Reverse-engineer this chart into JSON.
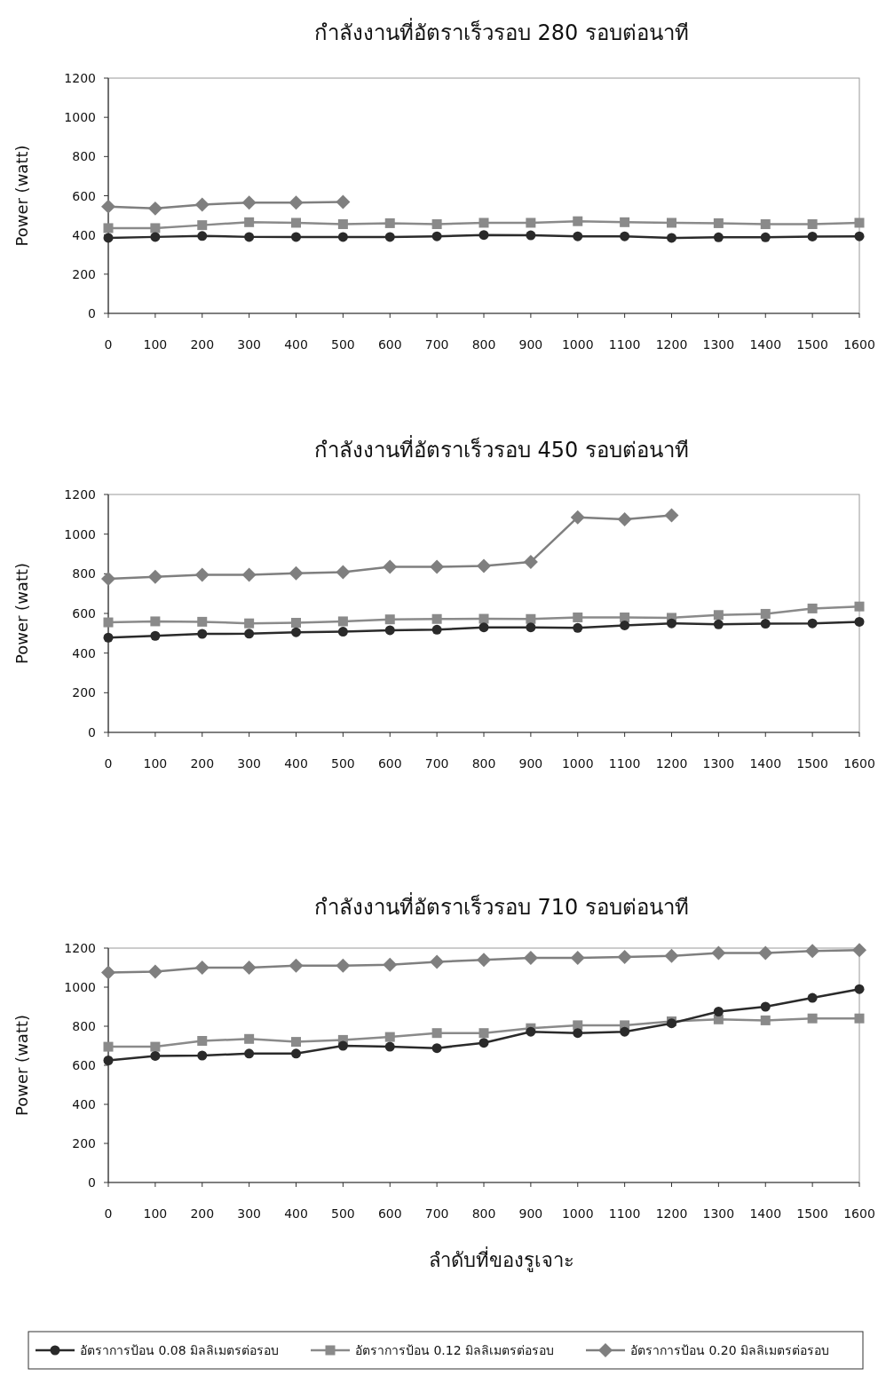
{
  "chart_data": [
    {
      "type": "line",
      "title": "กำลังงานที่อัตราเร็วรอบ 280 รอบต่อนาที",
      "ylabel": "Power (watt)",
      "x": [
        0,
        100,
        200,
        300,
        400,
        500,
        600,
        700,
        800,
        900,
        1000,
        1100,
        1200,
        1300,
        1400,
        1500,
        1600
      ],
      "xlim": [
        0,
        1600
      ],
      "xticks": [
        0,
        100,
        200,
        300,
        400,
        500,
        600,
        700,
        800,
        900,
        1000,
        1100,
        1200,
        1300,
        1400,
        1500,
        1600
      ],
      "ylim": [
        0,
        1200
      ],
      "yticks": [
        0,
        200,
        400,
        600,
        800,
        1000,
        1200
      ],
      "series": [
        {
          "color": "#2a2a2a",
          "marker": "circle",
          "values": [
            385,
            390,
            395,
            390,
            390,
            390,
            390,
            393,
            400,
            398,
            393,
            393,
            385,
            388,
            388,
            392,
            393
          ]
        },
        {
          "color": "#8a8a8a",
          "marker": "square",
          "values": [
            435,
            435,
            450,
            465,
            462,
            455,
            460,
            455,
            462,
            462,
            470,
            465,
            462,
            460,
            455,
            455,
            462
          ]
        },
        {
          "color": "#7f7f7f",
          "marker": "diamond",
          "values": [
            545,
            535,
            555,
            565,
            565,
            568,
            null,
            null,
            null,
            null,
            null,
            null,
            null,
            null,
            null,
            null,
            null
          ]
        }
      ]
    },
    {
      "type": "line",
      "title": "กำลังงานที่อัตราเร็วรอบ 450 รอบต่อนาที",
      "ylabel": "Power (watt)",
      "x": [
        0,
        100,
        200,
        300,
        400,
        500,
        600,
        700,
        800,
        900,
        1000,
        1100,
        1200,
        1300,
        1400,
        1500,
        1600
      ],
      "xlim": [
        0,
        1600
      ],
      "xticks": [
        0,
        100,
        200,
        300,
        400,
        500,
        600,
        700,
        800,
        900,
        1000,
        1100,
        1200,
        1300,
        1400,
        1500,
        1600
      ],
      "ylim": [
        0,
        1200
      ],
      "yticks": [
        0,
        200,
        400,
        600,
        800,
        1000,
        1200
      ],
      "series": [
        {
          "color": "#2a2a2a",
          "marker": "circle",
          "values": [
            478,
            487,
            497,
            498,
            505,
            508,
            515,
            518,
            530,
            530,
            527,
            540,
            550,
            545,
            548,
            550,
            558
          ]
        },
        {
          "color": "#8a8a8a",
          "marker": "square",
          "values": [
            555,
            560,
            558,
            550,
            553,
            560,
            570,
            572,
            573,
            572,
            580,
            580,
            578,
            592,
            598,
            625,
            635
          ]
        },
        {
          "color": "#7f7f7f",
          "marker": "diamond",
          "values": [
            775,
            785,
            795,
            795,
            803,
            808,
            835,
            835,
            840,
            860,
            1085,
            1075,
            1095,
            null,
            null,
            null,
            null
          ]
        }
      ]
    },
    {
      "type": "line",
      "title": "กำลังงานที่อัตราเร็วรอบ 710 รอบต่อนาที",
      "ylabel": "Power (watt)",
      "xlabel": "ลำดับที่ของรูเจาะ",
      "legend": "bottom",
      "x": [
        0,
        100,
        200,
        300,
        400,
        500,
        600,
        700,
        800,
        900,
        1000,
        1100,
        1200,
        1300,
        1400,
        1500,
        1600
      ],
      "xlim": [
        0,
        1600
      ],
      "xticks": [
        0,
        100,
        200,
        300,
        400,
        500,
        600,
        700,
        800,
        900,
        1000,
        1100,
        1200,
        1300,
        1400,
        1500,
        1600
      ],
      "ylim": [
        0,
        1200
      ],
      "yticks": [
        0,
        200,
        400,
        600,
        800,
        1000,
        1200
      ],
      "series": [
        {
          "name": "อัตราการป้อน 0.08 มิลลิเมตรต่อรอบ",
          "color": "#2a2a2a",
          "marker": "circle",
          "values": [
            625,
            648,
            650,
            660,
            660,
            700,
            695,
            688,
            715,
            772,
            765,
            772,
            815,
            875,
            900,
            945,
            990
          ]
        },
        {
          "name": "อัตราการป้อน 0.12 มิลลิเมตรต่อรอบ",
          "color": "#8a8a8a",
          "marker": "square",
          "values": [
            695,
            695,
            725,
            735,
            720,
            730,
            745,
            765,
            765,
            790,
            805,
            805,
            825,
            835,
            830,
            840,
            840
          ]
        },
        {
          "name": "อัตราการป้อน 0.20 มิลลิเมตรต่อรอบ",
          "color": "#7f7f7f",
          "marker": "diamond",
          "values": [
            1075,
            1080,
            1100,
            1100,
            1110,
            1110,
            1115,
            1130,
            1140,
            1150,
            1150,
            1155,
            1160,
            1175,
            1175,
            1185,
            1190
          ]
        }
      ]
    }
  ]
}
